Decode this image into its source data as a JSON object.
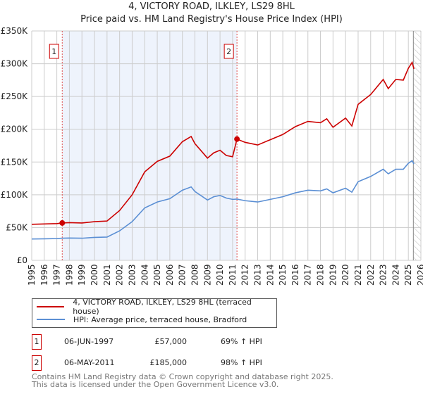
{
  "title": "4, VICTORY ROAD, ILKLEY, LS29 8HL",
  "subtitle": "Price paid vs. HM Land Registry's House Price Index (HPI)",
  "chart_data": {
    "type": "line",
    "xlim": [
      1995,
      2026
    ],
    "ylim": [
      0,
      350000
    ],
    "yticks": [
      0,
      50000,
      100000,
      150000,
      200000,
      250000,
      300000,
      350000
    ],
    "ytick_labels": [
      "£0",
      "£50K",
      "£100K",
      "£150K",
      "£200K",
      "£250K",
      "£300K",
      "£350K"
    ],
    "xticks": [
      1995,
      1996,
      1997,
      1998,
      1999,
      2000,
      2001,
      2002,
      2003,
      2004,
      2005,
      2006,
      2007,
      2008,
      2009,
      2010,
      2011,
      2012,
      2013,
      2014,
      2015,
      2016,
      2017,
      2018,
      2019,
      2020,
      2021,
      2022,
      2023,
      2024,
      2025,
      2026
    ],
    "grid": true,
    "x": [
      1995,
      1996,
      1997,
      1997.43,
      1998,
      1999,
      2000,
      2001,
      2002,
      2003,
      2004,
      2005,
      2006,
      2007,
      2007.7,
      2008,
      2009,
      2009.5,
      2010,
      2010.5,
      2011,
      2011.35,
      2012,
      2013,
      2014,
      2015,
      2016,
      2017,
      2018,
      2018.5,
      2019,
      2020,
      2020.5,
      2021,
      2022,
      2023,
      2023.4,
      2024,
      2024.6,
      2025,
      2025.3,
      2025.45
    ],
    "series": [
      {
        "name": "4, VICTORY ROAD, ILKLEY, LS29 8HL (terraced house)",
        "color": "#cc0000",
        "values": [
          55000,
          55500,
          56000,
          57000,
          57500,
          57000,
          59000,
          60000,
          76000,
          100000,
          135000,
          151000,
          159000,
          181000,
          189000,
          178000,
          156000,
          164000,
          168000,
          160000,
          158000,
          185000,
          180000,
          176000,
          184000,
          192000,
          204000,
          212000,
          210000,
          216000,
          203000,
          217000,
          205000,
          238000,
          253000,
          276000,
          262000,
          276000,
          275000,
          293000,
          302000,
          292000
        ]
      },
      {
        "name": "HPI: Average price, terraced house, Bradford",
        "color": "#5b8fd4",
        "values": [
          32500,
          32800,
          33200,
          33700,
          34000,
          33700,
          35000,
          35500,
          45000,
          59000,
          80000,
          89000,
          94000,
          107000,
          112000,
          105000,
          92000,
          97000,
          99000,
          95000,
          93000,
          93500,
          91000,
          89000,
          93000,
          97000,
          103000,
          107000,
          106000,
          109000,
          103000,
          110000,
          104000,
          120000,
          128000,
          139000,
          132000,
          139000,
          139000,
          148000,
          152000,
          147000
        ]
      }
    ],
    "annotations": [
      {
        "label": "1",
        "x": 1997.43,
        "y": 57000
      },
      {
        "label": "2",
        "x": 2011.35,
        "y": 185000
      }
    ],
    "shaded_range": [
      1997.43,
      2011.35
    ],
    "hatched_from": 2025.4
  },
  "legend": {
    "items": [
      "4, VICTORY ROAD, ILKLEY, LS29 8HL (terraced house)",
      "HPI: Average price, terraced house, Bradford"
    ]
  },
  "transactions": [
    {
      "num": "1",
      "date": "06-JUN-1997",
      "price": "£57,000",
      "hpi": "69% ↑ HPI"
    },
    {
      "num": "2",
      "date": "06-MAY-2011",
      "price": "£185,000",
      "hpi": "98% ↑ HPI"
    }
  ],
  "footer": [
    "Contains HM Land Registry data © Crown copyright and database right 2025.",
    "This data is licensed under the Open Government Licence v3.0."
  ]
}
